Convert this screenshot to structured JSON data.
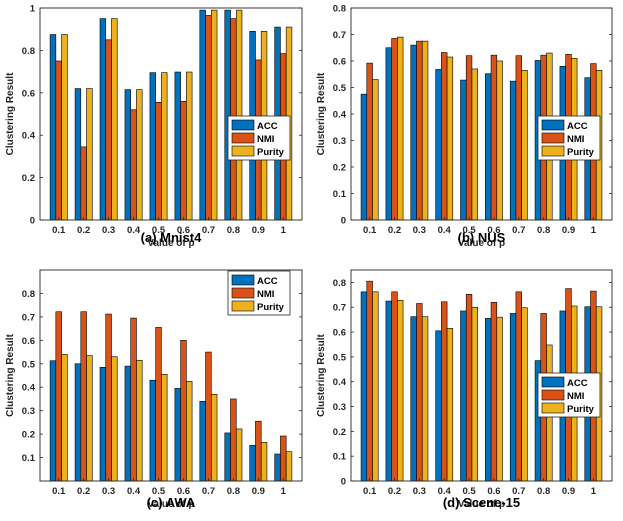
{
  "colors": {
    "acc": "#0072BD",
    "nmi": "#D95319",
    "purity": "#EDB120",
    "axis": "#262626",
    "background": "#ffffff"
  },
  "chart_data": [
    {
      "type": "bar",
      "caption": "(a) Mnist4",
      "xlabel": "Value of p",
      "ylabel": "Clustering Result",
      "categories": [
        "0.1",
        "0.2",
        "0.3",
        "0.4",
        "0.5",
        "0.6",
        "0.7",
        "0.8",
        "0.9",
        "1"
      ],
      "ylim": [
        0,
        1
      ],
      "yticks": [
        "0",
        "0.2",
        "0.4",
        "0.6",
        "0.8",
        "1"
      ],
      "legend_position": "center-right",
      "series": [
        {
          "name": "ACC",
          "values": [
            0.875,
            0.62,
            0.95,
            0.615,
            0.695,
            0.698,
            0.99,
            0.99,
            0.89,
            0.91
          ]
        },
        {
          "name": "NMI",
          "values": [
            0.75,
            0.345,
            0.85,
            0.52,
            0.555,
            0.56,
            0.965,
            0.95,
            0.755,
            0.785
          ]
        },
        {
          "name": "Purity",
          "values": [
            0.875,
            0.62,
            0.95,
            0.615,
            0.695,
            0.698,
            0.99,
            0.99,
            0.89,
            0.91
          ]
        }
      ]
    },
    {
      "type": "bar",
      "caption": "(b) NUS",
      "xlabel": "Value of p",
      "ylabel": "Clustering Result",
      "categories": [
        "0.1",
        "0.2",
        "0.3",
        "0.4",
        "0.5",
        "0.6",
        "0.7",
        "0.8",
        "0.9",
        "1"
      ],
      "ylim": [
        0,
        0.8
      ],
      "yticks": [
        "0",
        "0.1",
        "0.2",
        "0.3",
        "0.4",
        "0.5",
        "0.6",
        "0.7",
        "0.8"
      ],
      "legend_position": "center-right",
      "series": [
        {
          "name": "ACC",
          "values": [
            0.475,
            0.65,
            0.66,
            0.568,
            0.528,
            0.552,
            0.524,
            0.602,
            0.58,
            0.537
          ]
        },
        {
          "name": "NMI",
          "values": [
            0.592,
            0.685,
            0.675,
            0.632,
            0.62,
            0.622,
            0.62,
            0.622,
            0.625,
            0.59
          ]
        },
        {
          "name": "Purity",
          "values": [
            0.53,
            0.69,
            0.675,
            0.615,
            0.57,
            0.6,
            0.565,
            0.63,
            0.61,
            0.565
          ]
        }
      ]
    },
    {
      "type": "bar",
      "caption": "(c) AWA",
      "xlabel": "Value of p",
      "ylabel": "Clustering Result",
      "categories": [
        "0.1",
        "0.2",
        "0.3",
        "0.4",
        "0.5",
        "0.6",
        "0.7",
        "0.8",
        "0.9",
        "1"
      ],
      "ylim": [
        0,
        0.9
      ],
      "yticks": [
        "0.1",
        "0.2",
        "0.3",
        "0.4",
        "0.5",
        "0.6",
        "0.7",
        "0.8"
      ],
      "legend_position": "top-right",
      "series": [
        {
          "name": "ACC",
          "values": [
            0.513,
            0.5,
            0.485,
            0.49,
            0.43,
            0.395,
            0.34,
            0.205,
            0.152,
            0.115
          ]
        },
        {
          "name": "NMI",
          "values": [
            0.722,
            0.722,
            0.712,
            0.695,
            0.655,
            0.6,
            0.55,
            0.35,
            0.255,
            0.192
          ]
        },
        {
          "name": "Purity",
          "values": [
            0.54,
            0.535,
            0.53,
            0.515,
            0.455,
            0.425,
            0.37,
            0.222,
            0.165,
            0.125
          ]
        }
      ]
    },
    {
      "type": "bar",
      "caption": "(d) Scene-15",
      "xlabel": "Value of p",
      "ylabel": "Clustering Result",
      "categories": [
        "0.1",
        "0.2",
        "0.3",
        "0.4",
        "0.5",
        "0.6",
        "0.7",
        "0.8",
        "0.9",
        "1"
      ],
      "ylim": [
        0,
        0.85
      ],
      "yticks": [
        "0",
        "0.1",
        "0.2",
        "0.3",
        "0.4",
        "0.5",
        "0.6",
        "0.7",
        "0.8"
      ],
      "legend_position": "bottom-right",
      "series": [
        {
          "name": "ACC",
          "values": [
            0.762,
            0.725,
            0.662,
            0.605,
            0.685,
            0.655,
            0.675,
            0.485,
            0.685,
            0.702
          ]
        },
        {
          "name": "NMI",
          "values": [
            0.805,
            0.762,
            0.715,
            0.722,
            0.752,
            0.72,
            0.762,
            0.675,
            0.775,
            0.765
          ]
        },
        {
          "name": "Purity",
          "values": [
            0.762,
            0.728,
            0.662,
            0.615,
            0.7,
            0.66,
            0.698,
            0.548,
            0.705,
            0.702
          ]
        }
      ]
    }
  ]
}
